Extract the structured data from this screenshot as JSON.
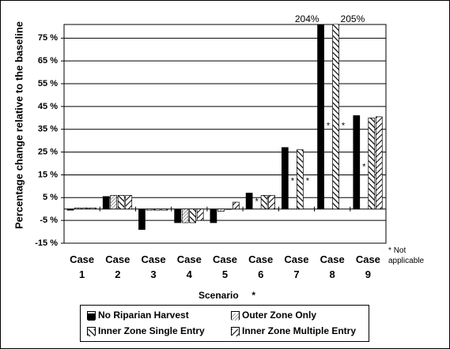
{
  "chart_data": {
    "type": "bar",
    "y_label": "Percentage change relative to the baseline",
    "x_label": "Scenario",
    "x_label_marker": "*",
    "note_marker": "*",
    "note": "Not applicable",
    "categories": [
      "Case 1",
      "Case 2",
      "Case 3",
      "Case 4",
      "Case 5",
      "Case 6",
      "Case 7",
      "Case 8",
      "Case 9"
    ],
    "series": [
      {
        "name": "No Riparian Harvest",
        "color": "#000000",
        "pattern": "solid",
        "values": [
          -0.5,
          5.5,
          -9,
          -6,
          -6,
          7,
          27,
          204,
          41
        ],
        "value_labels": [
          null,
          null,
          null,
          null,
          null,
          null,
          null,
          "204%",
          null
        ]
      },
      {
        "name": "Outer Zone Only",
        "color": "#000000",
        "pattern": "light-diagonal",
        "values": [
          0.5,
          6,
          -0.5,
          -6,
          -1,
          null,
          null,
          null,
          null
        ],
        "value_labels": [
          null,
          null,
          null,
          null,
          null,
          "*",
          "*",
          "*",
          "*"
        ]
      },
      {
        "name": "Inner Zone Single Entry",
        "color": "#000000",
        "pattern": "wide-back-diagonal",
        "values": [
          0.5,
          6,
          -0.5,
          -6,
          0,
          6,
          26,
          205,
          40
        ],
        "value_labels": [
          null,
          null,
          null,
          null,
          null,
          null,
          null,
          "205%",
          null
        ]
      },
      {
        "name": "Inner Zone Multiple Entry",
        "color": "#000000",
        "pattern": "wide-diagonal",
        "values": [
          0.5,
          6,
          -0.5,
          -5,
          3,
          6,
          null,
          null,
          40.5
        ],
        "value_labels": [
          null,
          null,
          null,
          null,
          null,
          null,
          "*",
          "*",
          null
        ]
      }
    ],
    "ylim": [
      -15,
      81
    ],
    "yticks": [
      {
        "value": -15,
        "label": "-15 %"
      },
      {
        "value": -5,
        "label": "-5 %"
      },
      {
        "value": 5,
        "label": "5 %"
      },
      {
        "value": 15,
        "label": "15 %"
      },
      {
        "value": 25,
        "label": "25 %"
      },
      {
        "value": 35,
        "label": "35 %"
      },
      {
        "value": 45,
        "label": "45 %"
      },
      {
        "value": 55,
        "label": "55 %"
      },
      {
        "value": 65,
        "label": "65 %"
      },
      {
        "value": 75,
        "label": "75 %"
      }
    ],
    "grid": true
  }
}
